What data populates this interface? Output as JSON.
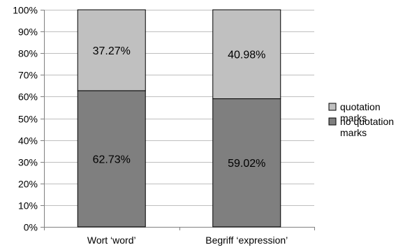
{
  "chart_data": {
    "type": "bar",
    "stacked": true,
    "categories": [
      "Wort ‘word’",
      "Begriff ‘expression’"
    ],
    "series": [
      {
        "name": "no quotation marks",
        "values": [
          62.73,
          59.02
        ],
        "labels": [
          "62.73%",
          "59.02%"
        ],
        "color": "#7f7f7f"
      },
      {
        "name": "quotation marks",
        "values": [
          37.27,
          40.98
        ],
        "labels": [
          "37.27%",
          "40.98%"
        ],
        "color": "#c0c0c0"
      }
    ],
    "ylim": [
      0,
      100
    ],
    "yticks": [
      "0%",
      "10%",
      "20%",
      "30%",
      "40%",
      "50%",
      "60%",
      "70%",
      "80%",
      "90%",
      "100%"
    ],
    "grid": true,
    "legend_position": "right",
    "legend_entries": [
      "quotation marks",
      "no quotation marks"
    ]
  }
}
